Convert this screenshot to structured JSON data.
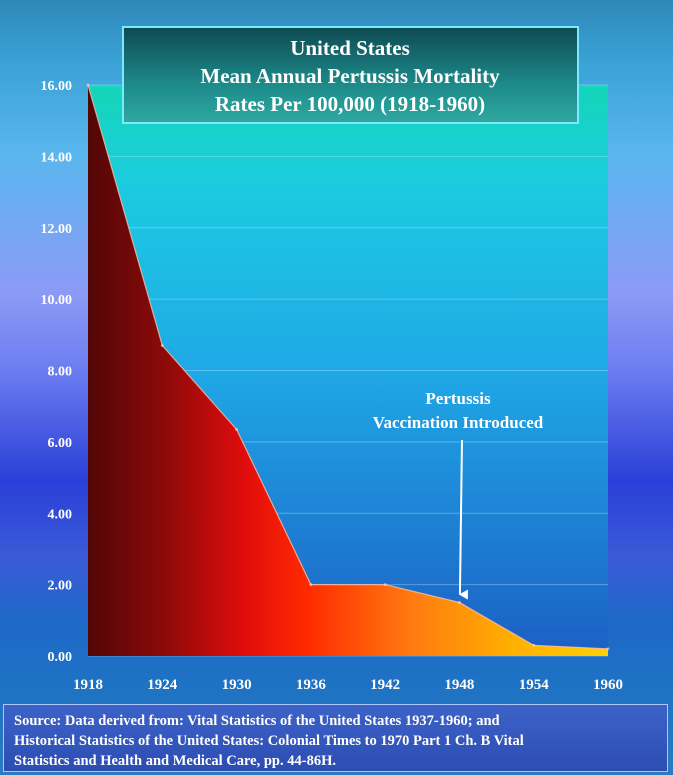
{
  "chart_data": {
    "type": "area",
    "title": [
      "United States",
      "Mean Annual Pertussis Mortality",
      "Rates  Per 100,000 (1918-1960)"
    ],
    "x": [
      1918,
      1924,
      1930,
      1936,
      1942,
      1948,
      1954,
      1960
    ],
    "values": [
      16.0,
      8.7,
      6.35,
      2.0,
      2.0,
      1.5,
      0.3,
      0.2
    ],
    "xticks": [
      "1918",
      "1924",
      "1930",
      "1936",
      "1942",
      "1948",
      "1954",
      "1960"
    ],
    "yticks": [
      "0.00",
      "2.00",
      "4.00",
      "6.00",
      "8.00",
      "10.00",
      "12.00",
      "14.00",
      "16.00"
    ],
    "ylim": [
      0,
      16
    ],
    "grid": true,
    "annotation": {
      "lines": [
        "Pertussis",
        "Vaccination Introduced"
      ],
      "x": 1948,
      "y": 1.5
    },
    "colors": {
      "plot_top": "#14d6b8",
      "plot_mid": "#1fa8e6",
      "plot_bottom": "#1c5fc4",
      "area_left": "#520606",
      "area_mid": "#ff2a00",
      "area_right": "#ffd000"
    }
  },
  "footer": {
    "lines": [
      "Source: Data derived from: Vital Statistics of the United States 1937-1960; and",
      "Historical Statistics of the United States: Colonial Times to 1970 Part 1 Ch. B Vital",
      "Statistics and Health and Medical Care,  pp. 44-86H."
    ]
  }
}
